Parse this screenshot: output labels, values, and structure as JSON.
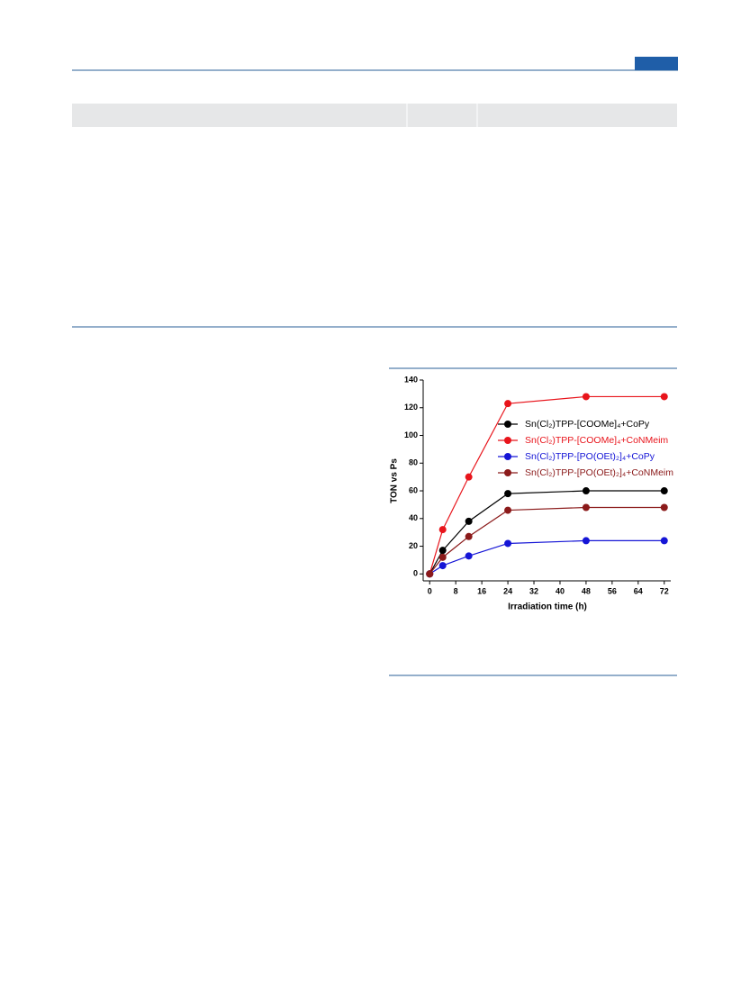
{
  "chart_data": {
    "type": "line",
    "x_label": "Irradiation time (h)",
    "y_label": "TON vs Ps",
    "x": [
      0,
      4,
      12,
      24,
      48,
      72
    ],
    "series": [
      {
        "name": "Sn(Cl₂)TPP-[COOMe]₄+CoPy",
        "color": "#000000",
        "values": [
          0,
          17,
          38,
          58,
          60,
          60
        ]
      },
      {
        "name": "Sn(Cl₂)TPP-[COOMe]₄+CoNMeim",
        "color": "#e8141b",
        "values": [
          0,
          32,
          70,
          123,
          128,
          128
        ]
      },
      {
        "name": "Sn(Cl₂)TPP-[PO(OEt)₂]₄+CoPy",
        "color": "#1515d6",
        "values": [
          0,
          6,
          13,
          22,
          24,
          24
        ]
      },
      {
        "name": "Sn(Cl₂)TPP-[PO(OEt)₂]₄+CoNMeim",
        "color": "#8b1a1a",
        "values": [
          0,
          12,
          27,
          46,
          48,
          48
        ]
      }
    ],
    "xlim": [
      -2,
      74
    ],
    "ylim": [
      -5,
      140
    ],
    "xticks": [
      0,
      8,
      16,
      24,
      32,
      40,
      48,
      56,
      64,
      72
    ],
    "yticks": [
      0,
      20,
      40,
      60,
      80,
      100,
      120,
      140
    ],
    "legend": "center right",
    "grid": false
  }
}
